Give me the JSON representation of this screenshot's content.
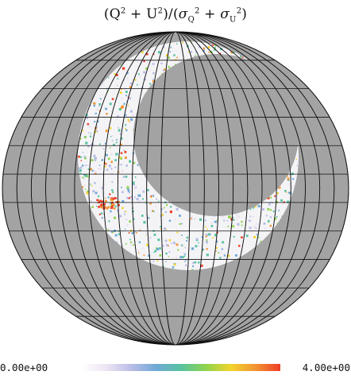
{
  "title": {
    "q": "Q",
    "q_exp": "2",
    "plus": " + ",
    "u": "U",
    "u_exp": "2",
    "slash": ")/(",
    "sigma": "σ",
    "sigma_q_sub": "Q",
    "sigma_exp": "2",
    "sigma_u_sub": "U"
  },
  "colorbar": {
    "min_label": "0.00e+00",
    "max_label": "4.00e+00",
    "min_value": 0.0,
    "max_value": 4.0,
    "stops": [
      "#ffffff",
      "#ece4f2",
      "#b9bde6",
      "#6fa9d7",
      "#58c3a0",
      "#8fd44d",
      "#f2d42d",
      "#f29433",
      "#ee3f27"
    ]
  },
  "map": {
    "projection": "mollweide",
    "background_color": "#a3a3a3",
    "masked_color": "#a3a3a3",
    "grid_color": "#111111",
    "meridian_count": 24,
    "parallel_count": 11
  }
}
